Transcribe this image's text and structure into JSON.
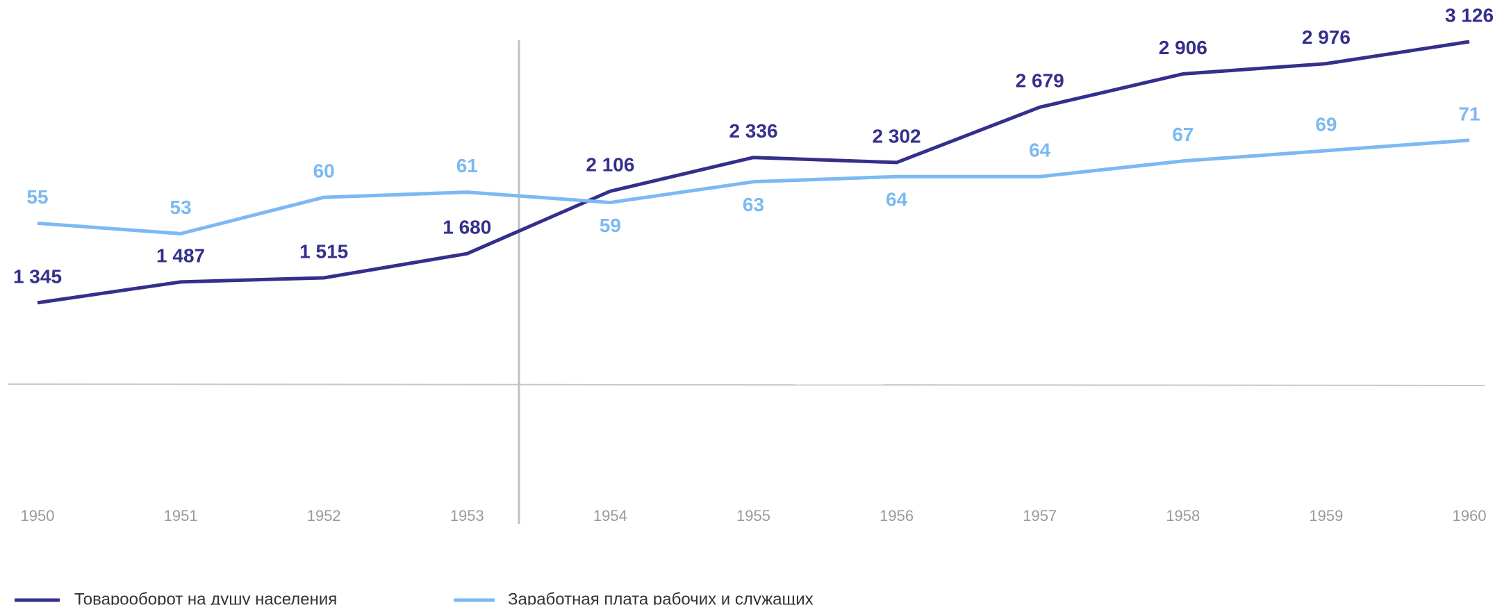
{
  "chart_data": {
    "type": "line",
    "categories": [
      "1950",
      "1951",
      "1952",
      "1953",
      "1954",
      "1955",
      "1956",
      "1957",
      "1958",
      "1959",
      "1960"
    ],
    "series": [
      {
        "name": "Товарооборот на душу населения",
        "color": "#352f8c",
        "values": [
          1345,
          1487,
          1515,
          1680,
          2106,
          2336,
          2302,
          2679,
          2906,
          2976,
          3126
        ],
        "value_labels": [
          "1 345",
          "1 487",
          "1 515",
          "1 680",
          "2 106",
          "2 336",
          "2 302",
          "2 679",
          "2 906",
          "2 976",
          "3 126"
        ]
      },
      {
        "name": "Заработная плата рабочих и служащих",
        "color": "#7cb9f2",
        "axis": "y2",
        "values": [
          55,
          53,
          60,
          61,
          59,
          63,
          64,
          64,
          67,
          69,
          71
        ]
      }
    ],
    "ylim": [
      790,
      3126
    ],
    "y2lim": [
      24,
      90
    ]
  }
}
